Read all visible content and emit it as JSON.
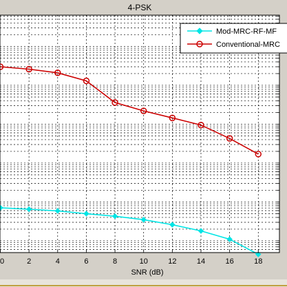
{
  "chart_data": {
    "type": "line",
    "title": "4-PSK",
    "xlabel": "SNR (dB)",
    "ylabel": "",
    "x_ticks": [
      "0",
      "2",
      "4",
      "6",
      "8",
      "10",
      "12",
      "14",
      "16",
      "18"
    ],
    "xlim": [
      0,
      19.5
    ],
    "yscale": "log",
    "grid": true,
    "legend_position": "top-right",
    "series": [
      {
        "name": "Mod-MRC-RF-MF",
        "color": "#00e5e5",
        "marker": "diamond",
        "x": [
          0,
          2,
          4,
          6,
          8,
          10,
          12,
          14,
          16,
          18
        ],
        "y": [
          7.1e-05,
          6.5e-05,
          5.9e-05,
          5e-05,
          4.3e-05,
          3.5e-05,
          2.6e-05,
          1.8e-05,
          1.1e-05,
          4.5e-06
        ]
      },
      {
        "name": "Conventional-MRC",
        "color": "#cc0000",
        "marker": "circle",
        "x": [
          0,
          2,
          4,
          6,
          8,
          10,
          12,
          14,
          16,
          18
        ],
        "y": [
          0.3,
          0.26,
          0.21,
          0.13,
          0.036,
          0.022,
          0.0145,
          0.0095,
          0.0043,
          0.0017
        ]
      }
    ]
  }
}
